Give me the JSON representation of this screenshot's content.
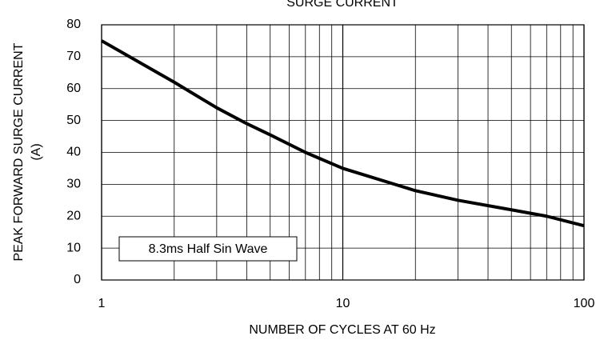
{
  "chart_data": {
    "type": "line",
    "title": "SURGE CURRENT",
    "x_label": "NUMBER OF CYCLES AT 60 Hz",
    "y_label": [
      "PEAK FORWARD SURGE CURRENT",
      "(A)"
    ],
    "annotation": "8.3ms Half Sin Wave",
    "x": [
      1,
      2,
      3,
      4,
      5,
      7,
      10,
      20,
      30,
      50,
      70,
      100
    ],
    "series": [
      {
        "name": "Surge current",
        "color": "#000000",
        "values": [
          75,
          62,
          54,
          49,
          45.5,
          40,
          35,
          28,
          25,
          22,
          20,
          17
        ]
      }
    ],
    "xscale": "log",
    "xlim": [
      1,
      100
    ],
    "xticks": [
      1,
      10,
      100
    ],
    "x_minor_ticks": [
      2,
      3,
      4,
      5,
      6,
      7,
      8,
      9,
      20,
      30,
      40,
      50,
      60,
      70,
      80,
      90
    ],
    "ylim": [
      0,
      80
    ],
    "yticks": [
      0,
      10,
      20,
      30,
      40,
      50,
      60,
      70,
      80
    ],
    "grid": true
  }
}
